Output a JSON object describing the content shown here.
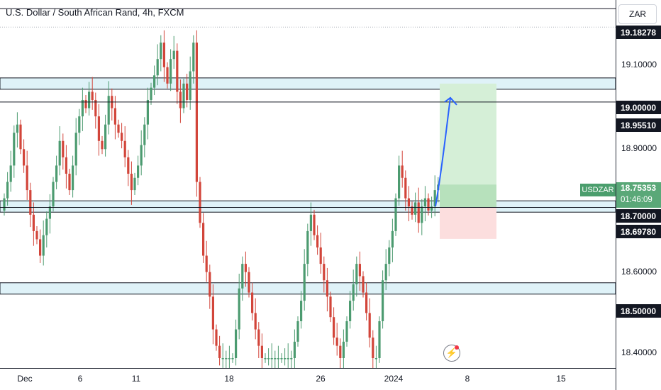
{
  "header": {
    "title": "U.S. Dollar / South African Rand, 4h, FXCM"
  },
  "axis": {
    "currency_button": "ZAR"
  },
  "last_price": {
    "symbol": "USDZAR",
    "price": "18.75353",
    "countdown": "01:46:09"
  },
  "alert_icon": "alert-clock-icon",
  "colors": {
    "up": "#4c9b70",
    "down": "#d2453a",
    "zone_fill": "#dff2f8",
    "line": "#131722",
    "profit": "#d5efd7",
    "loss": "#fcdede",
    "arrow": "#2962ff"
  },
  "chart_data": {
    "type": "candlestick",
    "title": "U.S. Dollar / South African Rand, 4h, FXCM",
    "symbol": "USDZAR",
    "ylim": [
      18.33,
      19.255
    ],
    "y_ticks": [
      "19.10000",
      "18.90000",
      "18.60000",
      "18.40000"
    ],
    "x_ticks": [
      "Dec",
      "6",
      "11",
      "18",
      "26",
      "2024",
      "8",
      "15"
    ],
    "horizontal_lines": [
      {
        "value": 19.18278,
        "label": "19.18278",
        "style": "thin-line"
      },
      {
        "value": 19.0,
        "label": "19.00000",
        "style": "zone"
      },
      {
        "value": 18.9551,
        "label": "18.95510",
        "style": "line"
      },
      {
        "value": 18.7,
        "label": "18.70000",
        "style": "zone"
      },
      {
        "value": 18.6978,
        "label": "18.69780",
        "style": "line"
      },
      {
        "value": 18.5,
        "label": "18.50000",
        "style": "zone"
      }
    ],
    "position": {
      "type": "long",
      "entry": 18.6978,
      "target": 19.0,
      "stop": 18.621
    },
    "closes": [
      18.72,
      18.76,
      18.8,
      18.88,
      18.9,
      18.84,
      18.8,
      18.74,
      18.68,
      18.64,
      18.62,
      18.58,
      18.63,
      18.67,
      18.7,
      18.76,
      18.8,
      18.86,
      18.82,
      18.78,
      18.74,
      18.8,
      18.88,
      18.92,
      18.96,
      18.94,
      18.98,
      18.96,
      18.92,
      18.86,
      18.84,
      18.9,
      18.97,
      18.94,
      18.9,
      18.88,
      18.86,
      18.82,
      18.78,
      18.74,
      18.77,
      18.8,
      18.85,
      18.9,
      18.96,
      18.99,
      19.02,
      19.06,
      19.1,
      19.04,
      19.0,
      19.06,
      19.08,
      18.98,
      18.94,
      19.0,
      18.96,
      19.03,
      19.1,
      18.76,
      18.66,
      18.58,
      18.54,
      18.48,
      18.4,
      18.36,
      18.33,
      18.33,
      18.33,
      18.33,
      18.33,
      18.4,
      18.5,
      18.56,
      18.54,
      18.49,
      18.44,
      18.4,
      18.36,
      18.33,
      18.33,
      18.33,
      18.33,
      18.33,
      18.33,
      18.33,
      18.33,
      18.33,
      18.33,
      18.37,
      18.42,
      18.47,
      18.56,
      18.64,
      18.68,
      18.63,
      18.6,
      18.56,
      18.52,
      18.48,
      18.43,
      18.38,
      18.36,
      18.33,
      18.37,
      18.42,
      18.47,
      18.51,
      18.56,
      18.53,
      18.49,
      18.44,
      18.38,
      18.33,
      18.33,
      18.42,
      18.52,
      18.56,
      18.6,
      18.64,
      18.72,
      18.8,
      18.77,
      18.72,
      18.7,
      18.68,
      18.71,
      18.66,
      18.7,
      18.72,
      18.69,
      18.7,
      18.74,
      18.75353
    ]
  }
}
